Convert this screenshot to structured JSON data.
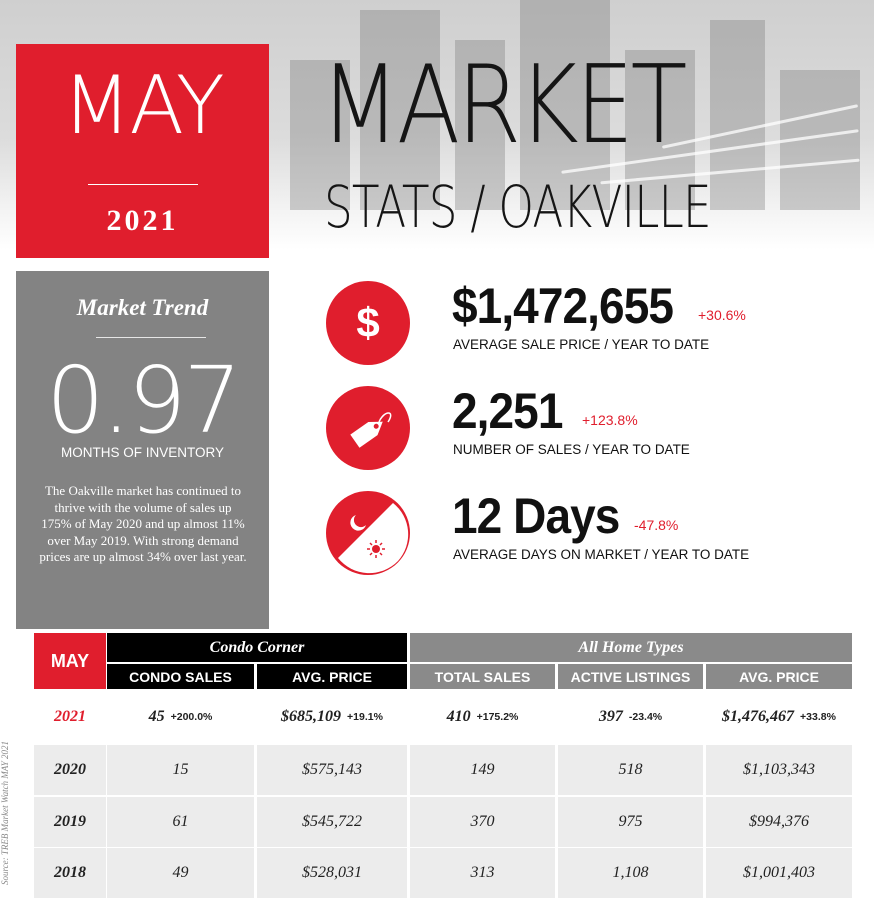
{
  "header": {
    "month": "MAY",
    "year": "2021",
    "title": "MARKET",
    "subtitle": "STATS / OAKVILLE"
  },
  "trend": {
    "title": "Market Trend",
    "value": "0.97",
    "unit": "MONTHS OF INVENTORY",
    "description": "The Oakville market has continued to thrive with the volume of sales up 175% of May 2020 and up almost 11% over May 2019. With strong demand prices are up almost 34% over last year."
  },
  "stats": [
    {
      "icon": "dollar-icon",
      "value": "$1,472,655",
      "change": "+30.6%",
      "label_main": "AVERAGE SALE PRICE",
      "label_suffix": " / YEAR TO DATE"
    },
    {
      "icon": "price-tag-icon",
      "value": "2,251",
      "change": "+123.8%",
      "label_main": "NUMBER OF SALES",
      "label_suffix": " / YEAR TO DATE"
    },
    {
      "icon": "day-night-icon",
      "value": "12 Days",
      "change": "-47.8%",
      "label_main": "AVERAGE DAYS ON MARKET",
      "label_suffix": " / YEAR TO DATE"
    }
  ],
  "table": {
    "month_label": "MAY",
    "group_condo": "Condo Corner",
    "group_all": "All Home Types",
    "columns": [
      "CONDO SALES",
      "AVG. PRICE",
      "TOTAL SALES",
      "ACTIVE LISTINGS",
      "AVG. PRICE"
    ],
    "rows": [
      {
        "year": "2021",
        "cells": [
          {
            "v": "45",
            "p": "+200.0%"
          },
          {
            "v": "$685,109",
            "p": "+19.1%"
          },
          {
            "v": "410",
            "p": "+175.2%"
          },
          {
            "v": "397",
            "p": "-23.4%"
          },
          {
            "v": "$1,476,467",
            "p": "+33.8%"
          }
        ]
      },
      {
        "year": "2020",
        "cells": [
          {
            "v": "15"
          },
          {
            "v": "$575,143"
          },
          {
            "v": "149"
          },
          {
            "v": "518"
          },
          {
            "v": "$1,103,343"
          }
        ]
      },
      {
        "year": "2019",
        "cells": [
          {
            "v": "61"
          },
          {
            "v": "$545,722"
          },
          {
            "v": "370"
          },
          {
            "v": "975"
          },
          {
            "v": "$994,376"
          }
        ]
      },
      {
        "year": "2018",
        "cells": [
          {
            "v": "49"
          },
          {
            "v": "$528,031"
          },
          {
            "v": "313"
          },
          {
            "v": "1,108"
          },
          {
            "v": "$1,001,403"
          }
        ]
      }
    ],
    "source": "Source: TREB Market Watch MAY 2021"
  },
  "colors": {
    "accent": "#e01e2d",
    "panel": "#838383",
    "header_black": "#000000"
  }
}
